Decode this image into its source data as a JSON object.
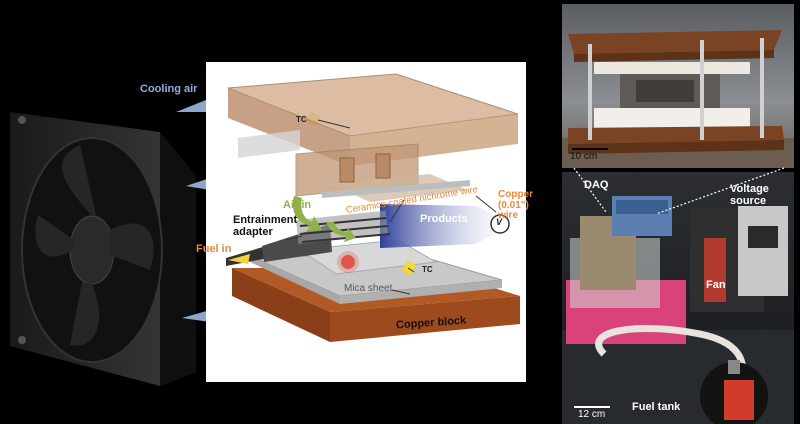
{
  "diagram": {
    "cooling_air_label": "Cooling air",
    "tc_label": "TC",
    "air_in_label": "Air in",
    "entrainment_adapter_label": "Entrainment adapter",
    "fuel_in_label": "Fuel in",
    "wire_label": "Ceramics-coated nichrome wire",
    "copper_label": "Copper (0.01\") wire",
    "voltage_symbol": "V",
    "products_label": "Products",
    "mica_label": "Mica sheet",
    "copper_block_label": "Copper block"
  },
  "photo_top": {
    "scale_label": "10 cm"
  },
  "photo_bottom": {
    "daq_label": "DAQ",
    "voltage_source_label": "Voltage source",
    "fan_label": "Fan",
    "scale_label": "12 cm",
    "fuel_tank_label": "Fuel tank"
  },
  "colors": {
    "copper": "#9c4a1e",
    "box_tan": "#c9a07a",
    "mica": "#b9b9b9",
    "label_orange": "#e88a3c",
    "label_blue": "#8fb0d8",
    "air_green": "#8fb04a",
    "products_blue": "#3a4fa8"
  }
}
